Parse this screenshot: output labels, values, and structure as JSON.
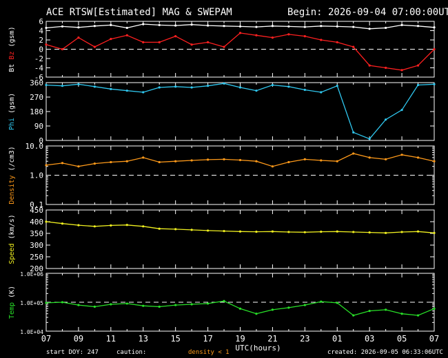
{
  "header": {
    "title": "ACE RTSW[Estimated] MAG & SWEPAM",
    "begin": "Begin: 2026-09-04 07:00:00UTC"
  },
  "footer": {
    "start_doy": "start DOY: 247",
    "caution": "caution:",
    "density_note": "density < 1",
    "created": "created: 2026-09-05 06:33:06UTC"
  },
  "colors": {
    "bt": "#ffffff",
    "bz": "#ff2020",
    "phi": "#30c8f0",
    "density": "#ff9a1a",
    "speed": "#f0f020",
    "temp": "#28e028",
    "axis": "#ffffff"
  },
  "chart_data": {
    "type": "line",
    "xlabel": "UTC(hours)",
    "x_tick_labels": [
      "07",
      "09",
      "11",
      "13",
      "15",
      "17",
      "19",
      "21",
      "23",
      "01",
      "03",
      "05",
      "07"
    ],
    "x_range_hours": [
      0,
      24
    ],
    "panels": [
      {
        "id": "mag",
        "ylabel_parts": [
          {
            "text": "Bt",
            "color": "#ffffff"
          },
          {
            "text": " ",
            "color": "#ffffff"
          },
          {
            "text": "Bz",
            "color": "#ff2020"
          },
          {
            "text": " (gsm)",
            "color": "#ffffff"
          }
        ],
        "scale": "linear",
        "ylim": [
          -6,
          6
        ],
        "ticks": [
          6,
          4,
          2,
          0,
          -2,
          -4,
          -6
        ],
        "tick_labels": [
          "6",
          "4",
          "2",
          "0",
          "-2",
          "-4",
          "-6"
        ],
        "dashed_ref": 0,
        "series": [
          {
            "name": "Bt",
            "color": "#ffffff",
            "x": [
              0,
              1,
              2,
              3,
              4,
              5,
              6,
              7,
              8,
              9,
              10,
              11,
              12,
              13,
              14,
              15,
              16,
              17,
              18,
              19,
              20,
              21,
              22,
              23,
              24
            ],
            "y": [
              4.6,
              4.9,
              4.7,
              5.0,
              5.2,
              4.6,
              5.4,
              5.2,
              5.1,
              5.3,
              5.1,
              5.0,
              4.9,
              4.8,
              5.0,
              4.9,
              4.8,
              5.0,
              4.9,
              4.8,
              4.4,
              4.6,
              5.2,
              5.0,
              4.7
            ]
          },
          {
            "name": "Bz",
            "color": "#ff2020",
            "x": [
              0,
              1,
              2,
              3,
              4,
              5,
              6,
              7,
              8,
              9,
              10,
              11,
              12,
              13,
              14,
              15,
              16,
              17,
              18,
              19,
              20,
              21,
              22,
              23,
              24
            ],
            "y": [
              1.0,
              0.0,
              2.5,
              0.5,
              2.2,
              3.0,
              1.5,
              1.5,
              2.8,
              1.0,
              1.5,
              0.5,
              3.5,
              3.0,
              2.5,
              3.2,
              2.8,
              2.0,
              1.5,
              0.5,
              -3.5,
              -4.0,
              -4.5,
              -3.5,
              0.0
            ]
          }
        ]
      },
      {
        "id": "phi",
        "ylabel_parts": [
          {
            "text": "Phi",
            "color": "#30c8f0"
          },
          {
            "text": " (gsm)",
            "color": "#ffffff"
          }
        ],
        "scale": "linear",
        "ylim": [
          0,
          360
        ],
        "ticks": [
          360,
          270,
          180,
          90,
          0
        ],
        "tick_labels": [
          "360",
          "270",
          "180",
          "90",
          "0"
        ],
        "series": [
          {
            "name": "Phi",
            "color": "#30c8f0",
            "x": [
              0,
              1,
              2,
              3,
              4,
              5,
              6,
              7,
              8,
              9,
              10,
              11,
              12,
              13,
              14,
              15,
              16,
              17,
              18,
              19,
              20,
              21,
              22,
              23,
              24
            ],
            "y": [
              345,
              340,
              350,
              335,
              320,
              310,
              300,
              330,
              335,
              330,
              340,
              355,
              330,
              310,
              345,
              335,
              315,
              300,
              340,
              50,
              10,
              130,
              190,
              345,
              350
            ]
          }
        ]
      },
      {
        "id": "density",
        "ylabel_parts": [
          {
            "text": "Density",
            "color": "#ff9a1a"
          },
          {
            "text": " (/cm3)",
            "color": "#ffffff"
          }
        ],
        "scale": "log",
        "ylim": [
          0.1,
          10
        ],
        "ticks": [
          10,
          1,
          0.1
        ],
        "tick_labels": [
          "10.0",
          "1.0",
          "0.1"
        ],
        "dashed_ref": 1,
        "series": [
          {
            "name": "Density",
            "color": "#ff9a1a",
            "x": [
              0,
              1,
              2,
              3,
              4,
              5,
              6,
              7,
              8,
              9,
              10,
              11,
              12,
              13,
              14,
              15,
              16,
              17,
              18,
              19,
              20,
              21,
              22,
              23,
              24
            ],
            "y": [
              2.2,
              2.6,
              2.0,
              2.5,
              2.8,
              3.0,
              4.0,
              2.8,
              3.0,
              3.2,
              3.4,
              3.5,
              3.3,
              3.0,
              2.0,
              2.8,
              3.5,
              3.2,
              3.0,
              5.5,
              4.0,
              3.5,
              5.0,
              4.0,
              3.0
            ]
          }
        ]
      },
      {
        "id": "speed",
        "ylabel_parts": [
          {
            "text": "Speed",
            "color": "#f0f020"
          },
          {
            "text": " (km/s)",
            "color": "#ffffff"
          }
        ],
        "scale": "linear",
        "ylim": [
          200,
          450
        ],
        "ticks": [
          450,
          400,
          350,
          300,
          250,
          200
        ],
        "tick_labels": [
          "450",
          "400",
          "350",
          "300",
          "250",
          "200"
        ],
        "series": [
          {
            "name": "Speed",
            "color": "#f0f020",
            "x": [
              0,
              1,
              2,
              3,
              4,
              5,
              6,
              7,
              8,
              9,
              10,
              11,
              12,
              13,
              14,
              15,
              16,
              17,
              18,
              19,
              20,
              21,
              22,
              23,
              24
            ],
            "y": [
              400,
              392,
              385,
              380,
              384,
              386,
              380,
              370,
              368,
              365,
              362,
              360,
              358,
              357,
              358,
              356,
              355,
              357,
              358,
              356,
              354,
              352,
              356,
              358,
              352
            ]
          }
        ]
      },
      {
        "id": "temp",
        "ylabel_parts": [
          {
            "text": "Temp",
            "color": "#28e028"
          },
          {
            "text": " (K)",
            "color": "#ffffff"
          }
        ],
        "scale": "log",
        "ylim": [
          10000,
          1000000
        ],
        "ticks": [
          1000000,
          100000,
          10000
        ],
        "tick_labels": [
          "1.0E+06",
          "1.0E+05",
          "1.0E+04"
        ],
        "dashed_ref": 100000,
        "series": [
          {
            "name": "Temp",
            "color": "#28e028",
            "x": [
              0,
              1,
              2,
              3,
              4,
              5,
              6,
              7,
              8,
              9,
              10,
              11,
              12,
              13,
              14,
              15,
              16,
              17,
              18,
              19,
              20,
              21,
              22,
              23,
              24
            ],
            "y": [
              95000,
              100000,
              80000,
              70000,
              85000,
              90000,
              75000,
              70000,
              80000,
              85000,
              90000,
              110000,
              60000,
              40000,
              55000,
              65000,
              80000,
              105000,
              95000,
              35000,
              50000,
              55000,
              40000,
              35000,
              60000
            ]
          }
        ]
      }
    ]
  }
}
